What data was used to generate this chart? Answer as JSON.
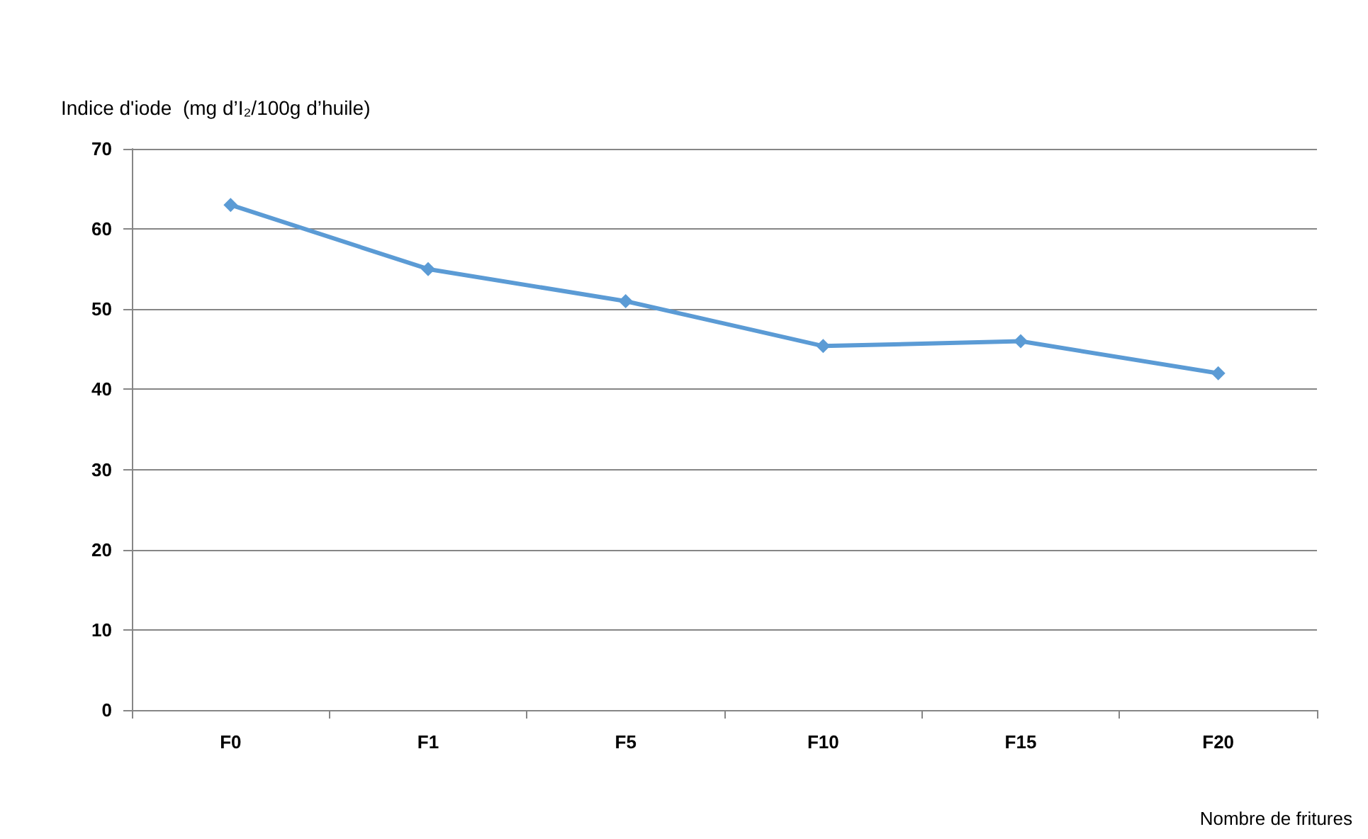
{
  "chart_data": {
    "type": "line",
    "ylabel": "Indice d'iode  (mg d’I₂/100g d’huile)",
    "xlabel": "Nombre de fritures",
    "categories": [
      "F0",
      "F1",
      "F5",
      "F10",
      "F15",
      "F20"
    ],
    "series": [
      {
        "color": "#5b9bd5",
        "values": [
          63,
          55,
          51,
          45.4,
          46,
          42
        ]
      }
    ],
    "ylim": [
      0,
      70
    ],
    "yticks": [
      0,
      10,
      20,
      30,
      40,
      50,
      60,
      70
    ],
    "grid": "y",
    "marker": "diamond",
    "line_style": "solid"
  }
}
